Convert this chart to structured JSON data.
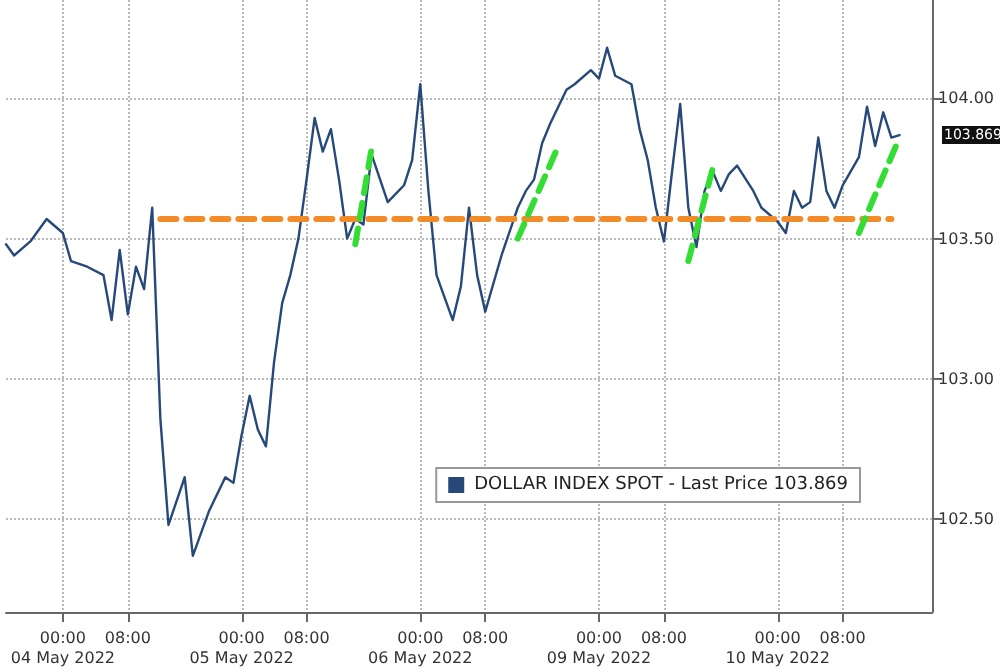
{
  "chart_data": {
    "type": "line",
    "categories": [
      null,
      null,
      null,
      null,
      null,
      null,
      null,
      "00:00\n04 May 2022",
      null,
      null,
      null,
      null,
      null,
      null,
      null,
      "08:00",
      null,
      null,
      null,
      null,
      null,
      null,
      null,
      null,
      null,
      null,
      null,
      null,
      null,
      "00:00\n05 May 2022",
      null,
      null,
      null,
      null,
      null,
      null,
      null,
      "08:00",
      null,
      null,
      null,
      null,
      null,
      null,
      null,
      null,
      null,
      null,
      null,
      null,
      null,
      "00:00\n06 May 2022",
      null,
      null,
      null,
      null,
      null,
      null,
      null,
      "08:00",
      null,
      null,
      null,
      null,
      null,
      null,
      null,
      null,
      null,
      null,
      null,
      null,
      null,
      "00:00\n09 May 2022",
      null,
      null,
      null,
      null,
      null,
      null,
      null,
      "08:00",
      null,
      null,
      null,
      null,
      null,
      null,
      null,
      null,
      null,
      null,
      null,
      null,
      null,
      "00:00\n10 May 2022",
      null,
      null,
      null,
      null,
      null,
      null,
      null,
      "08:00",
      null,
      null,
      null,
      null,
      null,
      null,
      null,
      null,
      null,
      null,
      null
    ],
    "series": [
      {
        "name": "DOLLAR INDEX SPOT - Last Price 103.869",
        "color": "#26497a",
        "line_style": "solid",
        "values": [
          103.48,
          103.44,
          null,
          103.49,
          null,
          103.57,
          null,
          103.52,
          103.42,
          null,
          103.4,
          null,
          103.37,
          103.21,
          103.46,
          103.23,
          103.4,
          103.32,
          103.61,
          102.86,
          102.48,
          null,
          102.65,
          102.37,
          null,
          102.53,
          null,
          102.65,
          102.63,
          102.8,
          102.94,
          102.82,
          102.76,
          103.06,
          103.27,
          103.37,
          103.5,
          103.71,
          103.93,
          103.81,
          103.89,
          103.71,
          103.5,
          103.57,
          103.55,
          103.8,
          null,
          103.63,
          null,
          103.69,
          103.78,
          104.05,
          103.67,
          103.37,
          null,
          103.21,
          103.33,
          103.61,
          103.37,
          103.24,
          null,
          103.44,
          null,
          103.61,
          103.67,
          103.71,
          103.84,
          103.91,
          null,
          104.03,
          104.05,
          null,
          104.1,
          104.07,
          104.18,
          104.08,
          null,
          104.05,
          103.89,
          103.78,
          103.61,
          103.49,
          103.74,
          103.98,
          103.61,
          103.47,
          103.67,
          103.74,
          103.67,
          103.73,
          103.76,
          null,
          103.67,
          103.61,
          null,
          103.56,
          103.52,
          103.67,
          103.61,
          103.63,
          103.86,
          103.67,
          103.61,
          103.69,
          null,
          103.79,
          103.97,
          103.83,
          103.95,
          103.86,
          103.869,
          null,
          null,
          null,
          null
        ]
      },
      {
        "color": "#f28c28",
        "line_style": "dashed",
        "values": [
          null,
          null,
          null,
          null,
          null,
          null,
          null,
          null,
          null,
          null,
          null,
          null,
          null,
          null,
          null,
          null,
          null,
          null,
          null,
          103.57,
          null,
          null,
          null,
          null,
          null,
          null,
          null,
          null,
          null,
          null,
          null,
          null,
          null,
          null,
          null,
          null,
          null,
          null,
          null,
          null,
          null,
          null,
          null,
          null,
          null,
          null,
          null,
          null,
          null,
          null,
          null,
          null,
          null,
          null,
          null,
          null,
          null,
          null,
          null,
          null,
          null,
          null,
          null,
          null,
          null,
          null,
          null,
          null,
          null,
          null,
          null,
          null,
          null,
          null,
          null,
          null,
          null,
          null,
          null,
          null,
          null,
          null,
          null,
          null,
          null,
          null,
          null,
          null,
          null,
          null,
          null,
          null,
          null,
          null,
          null,
          null,
          null,
          null,
          null,
          null,
          null,
          null,
          null,
          null,
          null,
          null,
          null,
          null,
          null,
          103.57,
          null,
          null,
          null,
          null,
          null
        ]
      },
      {
        "color": "#33dd33",
        "line_style": "dashed",
        "values": [
          null,
          null,
          null,
          null,
          null,
          null,
          null,
          null,
          null,
          null,
          null,
          null,
          null,
          null,
          null,
          null,
          null,
          null,
          null,
          null,
          null,
          null,
          null,
          null,
          null,
          null,
          null,
          null,
          null,
          null,
          null,
          null,
          null,
          null,
          null,
          null,
          null,
          null,
          null,
          null,
          null,
          null,
          null,
          103.48,
          null,
          103.82,
          null,
          null,
          null,
          null,
          null,
          null,
          null,
          null,
          null,
          null,
          null,
          null,
          null,
          null,
          null,
          null,
          null,
          null,
          null,
          null,
          null,
          null,
          null,
          null,
          null,
          null,
          null,
          null,
          null,
          null,
          null,
          null,
          null,
          null,
          null,
          null,
          null,
          null,
          null,
          null,
          null,
          null,
          null,
          null,
          null,
          null,
          null,
          null,
          null,
          null,
          null,
          null,
          null,
          null,
          null,
          null,
          null,
          null,
          null,
          null,
          null,
          null,
          null,
          null,
          null,
          null,
          null,
          null,
          null
        ]
      },
      {
        "color": "#33dd33",
        "line_style": "dashed",
        "values": [
          null,
          null,
          null,
          null,
          null,
          null,
          null,
          null,
          null,
          null,
          null,
          null,
          null,
          null,
          null,
          null,
          null,
          null,
          null,
          null,
          null,
          null,
          null,
          null,
          null,
          null,
          null,
          null,
          null,
          null,
          null,
          null,
          null,
          null,
          null,
          null,
          null,
          null,
          null,
          null,
          null,
          null,
          null,
          null,
          null,
          null,
          null,
          null,
          null,
          null,
          null,
          null,
          null,
          null,
          null,
          null,
          null,
          null,
          null,
          null,
          null,
          null,
          null,
          103.5,
          null,
          null,
          null,
          null,
          103.83,
          null,
          null,
          null,
          null,
          null,
          null,
          null,
          null,
          null,
          null,
          null,
          null,
          null,
          null,
          null,
          null,
          null,
          null,
          null,
          null,
          null,
          null,
          null,
          null,
          null,
          null,
          null,
          null,
          null,
          null,
          null,
          null,
          null,
          null,
          null,
          null,
          null,
          null,
          null,
          null,
          null,
          null,
          null,
          null,
          null,
          null
        ]
      },
      {
        "color": "#33dd33",
        "line_style": "dashed",
        "values": [
          null,
          null,
          null,
          null,
          null,
          null,
          null,
          null,
          null,
          null,
          null,
          null,
          null,
          null,
          null,
          null,
          null,
          null,
          null,
          null,
          null,
          null,
          null,
          null,
          null,
          null,
          null,
          null,
          null,
          null,
          null,
          null,
          null,
          null,
          null,
          null,
          null,
          null,
          null,
          null,
          null,
          null,
          null,
          null,
          null,
          null,
          null,
          null,
          null,
          null,
          null,
          null,
          null,
          null,
          null,
          null,
          null,
          null,
          null,
          null,
          null,
          null,
          null,
          null,
          null,
          null,
          null,
          null,
          null,
          null,
          null,
          null,
          null,
          null,
          null,
          null,
          null,
          null,
          null,
          null,
          null,
          null,
          null,
          null,
          103.42,
          null,
          null,
          103.75,
          null,
          null,
          null,
          null,
          null,
          null,
          null,
          null,
          null,
          null,
          null,
          null,
          null,
          null,
          null,
          null,
          null,
          null,
          null,
          null,
          null,
          null,
          null,
          null,
          null,
          null,
          null
        ]
      },
      {
        "color": "#33dd33",
        "line_style": "dashed",
        "values": [
          null,
          null,
          null,
          null,
          null,
          null,
          null,
          null,
          null,
          null,
          null,
          null,
          null,
          null,
          null,
          null,
          null,
          null,
          null,
          null,
          null,
          null,
          null,
          null,
          null,
          null,
          null,
          null,
          null,
          null,
          null,
          null,
          null,
          null,
          null,
          null,
          null,
          null,
          null,
          null,
          null,
          null,
          null,
          null,
          null,
          null,
          null,
          null,
          null,
          null,
          null,
          null,
          null,
          null,
          null,
          null,
          null,
          null,
          null,
          null,
          null,
          null,
          null,
          null,
          null,
          null,
          null,
          null,
          null,
          null,
          null,
          null,
          null,
          null,
          null,
          null,
          null,
          null,
          null,
          null,
          null,
          null,
          null,
          null,
          null,
          null,
          null,
          null,
          null,
          null,
          null,
          null,
          null,
          null,
          null,
          null,
          null,
          null,
          null,
          null,
          null,
          null,
          null,
          null,
          null,
          103.52,
          null,
          null,
          null,
          null,
          103.86,
          null,
          null,
          null,
          null
        ]
      }
    ],
    "ylim": [
      102.17,
      104.35
    ],
    "yticks": [
      {
        "value": 102.5,
        "label": "102.50"
      },
      {
        "value": 103,
        "label": "103.00"
      },
      {
        "value": 103.5,
        "label": "103.50"
      },
      {
        "value": 104,
        "label": "104.00"
      }
    ],
    "annotations": [
      "103.869"
    ],
    "grid": true,
    "legend": "bottom right",
    "marker": "none"
  }
}
